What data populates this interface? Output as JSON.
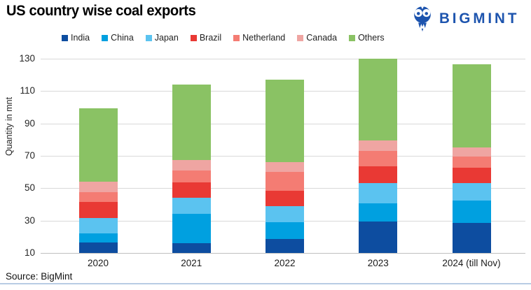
{
  "header": {
    "title": "US country wise coal exports",
    "brand": "BIGMINT"
  },
  "source": "Source: BigMint",
  "colors": {
    "brand_blue": "#1d54ae",
    "grid": "#d9d9d9",
    "axis_baseline": "#c0c0c0",
    "footer_line": "#b8cce4",
    "title_text": "#000000",
    "tick_text": "#262626"
  },
  "chart_data": {
    "type": "bar",
    "stacked": true,
    "title": "US country wise coal exports",
    "xlabel": "",
    "ylabel": "Quantity in mnt",
    "ylim": [
      10,
      130
    ],
    "yticks": [
      10,
      30,
      50,
      70,
      90,
      110,
      130
    ],
    "grid": true,
    "legend_position": "top",
    "categories": [
      "2020",
      "2021",
      "2022",
      "2023",
      "2024 (till Nov)"
    ],
    "series": [
      {
        "name": "India",
        "color": "#0d4da0",
        "values": [
          16.5,
          16.0,
          18.5,
          29.5,
          28.5
        ]
      },
      {
        "name": "China",
        "color": "#00a0e0",
        "values": [
          5.5,
          18.0,
          10.5,
          11.0,
          14.0
        ]
      },
      {
        "name": "Japan",
        "color": "#5bc3f0",
        "values": [
          9.5,
          10.0,
          10.0,
          12.5,
          10.5
        ]
      },
      {
        "name": "Brazil",
        "color": "#e93934",
        "values": [
          10.0,
          9.5,
          9.5,
          10.5,
          9.5
        ]
      },
      {
        "name": "Netherland",
        "color": "#f47c73",
        "values": [
          6.0,
          7.5,
          11.5,
          9.5,
          7.0
        ]
      },
      {
        "name": "Canada",
        "color": "#efa5a2",
        "values": [
          6.5,
          6.5,
          6.0,
          6.5,
          5.5
        ]
      },
      {
        "name": "Others",
        "color": "#8ac264",
        "values": [
          45.5,
          46.5,
          51.0,
          50.5,
          51.5
        ]
      }
    ],
    "totals": [
      99.5,
      114.0,
      117.0,
      130.0,
      126.5
    ],
    "note": "y-axis starts at 10 mnt; bottom segment of each stack is drawn from the 10 baseline"
  }
}
